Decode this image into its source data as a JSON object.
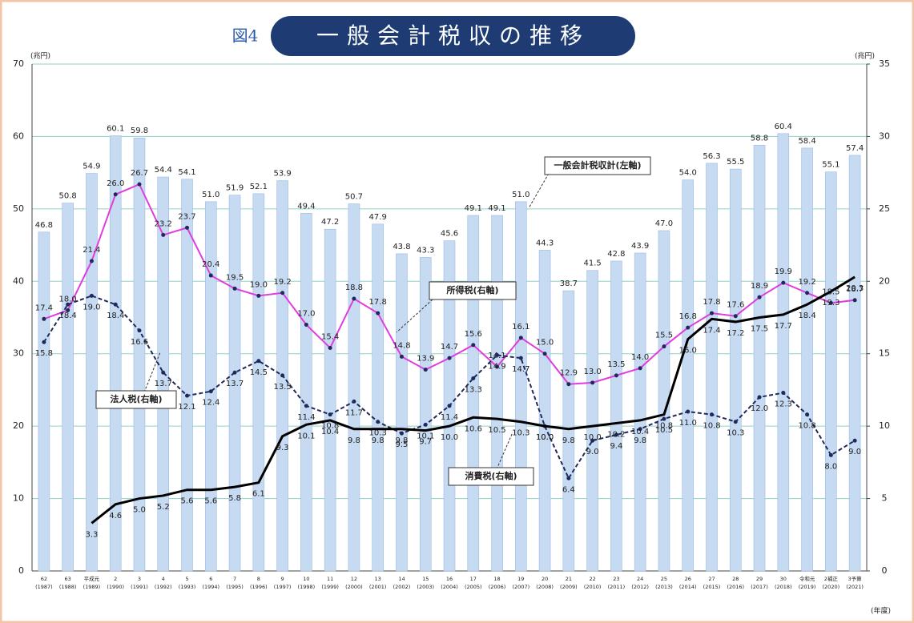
{
  "chart_data": {
    "type": "bar",
    "figure_label": "図4",
    "title": "一般会計税収の推移",
    "y_unit": "(兆円)",
    "y2_unit": "(兆円)",
    "x_unit": "(年度)",
    "categories": [
      "62",
      "63",
      "平成元",
      "2",
      "3",
      "4",
      "5",
      "6",
      "7",
      "8",
      "9",
      "10",
      "11",
      "12",
      "13",
      "14",
      "15",
      "16",
      "17",
      "18",
      "19",
      "20",
      "21",
      "22",
      "23",
      "24",
      "25",
      "26",
      "27",
      "28",
      "29",
      "30",
      "令和元",
      "2補正",
      "3予算"
    ],
    "category_years": [
      "(1987)",
      "(1988)",
      "(1989)",
      "(1990)",
      "(1991)",
      "(1992)",
      "(1993)",
      "(1994)",
      "(1995)",
      "(1996)",
      "(1997)",
      "(1998)",
      "(1999)",
      "(2000)",
      "(2001)",
      "(2002)",
      "(2003)",
      "(2004)",
      "(2005)",
      "(2006)",
      "(2007)",
      "(2008)",
      "(2009)",
      "(2010)",
      "(2011)",
      "(2012)",
      "(2013)",
      "(2014)",
      "(2015)",
      "(2016)",
      "(2017)",
      "(2018)",
      "(2019)",
      "(2020)",
      "(2021)"
    ],
    "ylim": [
      0,
      70
    ],
    "yticks": [
      0,
      10,
      20,
      30,
      40,
      50,
      60,
      70
    ],
    "y2lim": [
      0,
      35
    ],
    "y2ticks": [
      0,
      5,
      10,
      15,
      20,
      25,
      30,
      35
    ],
    "series": [
      {
        "name": "一般会計税収計(左軸)",
        "type": "bar",
        "color": "#c6daf2",
        "values": [
          46.8,
          50.8,
          54.9,
          60.1,
          59.8,
          54.4,
          54.1,
          51.0,
          51.9,
          52.1,
          53.9,
          49.4,
          47.2,
          50.7,
          47.9,
          43.8,
          43.3,
          45.6,
          49.1,
          49.1,
          51.0,
          44.3,
          38.7,
          41.5,
          42.8,
          43.9,
          47.0,
          54.0,
          56.3,
          55.5,
          58.8,
          60.4,
          58.4,
          55.1,
          57.4
        ],
        "value_labels": [
          "46.8",
          "50.8",
          "54.9",
          "60.1",
          "59.8",
          "54.4",
          "54.1",
          "51.0",
          "51.9",
          "52.1",
          "53.9",
          "49.4",
          "47.2",
          "50.7",
          "47.9",
          "43.8",
          "43.3",
          "45.6",
          "49.1",
          "49.1",
          "51.0",
          "44.3",
          "38.7",
          "41.5",
          "42.8",
          "43.9",
          "47.0",
          "54.0",
          "56.3",
          "55.5",
          "58.8",
          "60.4",
          "58.4",
          "55.1",
          "57.4"
        ]
      },
      {
        "name": "所得税(右軸)",
        "type": "line",
        "axis": "y2",
        "color": "#e03ce0",
        "values": [
          17.4,
          18.0,
          21.4,
          26.0,
          26.7,
          23.2,
          23.7,
          20.4,
          19.5,
          19.0,
          19.2,
          17.0,
          15.4,
          18.8,
          17.8,
          14.8,
          13.9,
          14.7,
          15.6,
          14.1,
          16.1,
          15.0,
          12.9,
          13.0,
          13.5,
          14.0,
          15.5,
          16.8,
          17.8,
          17.6,
          18.9,
          19.9,
          19.2,
          18.5,
          18.7
        ],
        "value_labels": [
          "17.4",
          "18.0",
          "21.4",
          "26.0",
          "26.7",
          "23.2",
          "23.7",
          "20.4",
          "19.5",
          "19.0",
          "19.2",
          "17.0",
          "15.4",
          "18.8",
          "17.8",
          "14.8",
          "13.9",
          "14.7",
          "15.6",
          "14.1",
          "16.1",
          "15.0",
          "12.9",
          "13.0",
          "13.5",
          "14.0",
          "15.5",
          "16.8",
          "17.8",
          "17.6",
          "18.9",
          "19.9",
          "19.2",
          "18.5",
          "18.7"
        ]
      },
      {
        "name": "法人税(右軸)",
        "type": "line",
        "axis": "y2",
        "color": "#1e2a5c",
        "dashed": true,
        "values": [
          15.8,
          18.4,
          19.0,
          18.4,
          16.6,
          13.7,
          12.1,
          12.4,
          13.7,
          14.5,
          13.5,
          11.4,
          10.8,
          11.7,
          10.3,
          9.5,
          10.1,
          11.4,
          13.3,
          14.9,
          14.7,
          10.0,
          6.4,
          9.0,
          9.4,
          9.8,
          10.5,
          11.0,
          10.8,
          10.3,
          12.0,
          12.3,
          10.8,
          8.0,
          9.0
        ],
        "value_labels": [
          "15.8",
          "18.4",
          "19.0",
          "18.4",
          "16.6",
          "13.7",
          "12.1",
          "12.4",
          "13.7",
          "14.5",
          "13.5",
          "11.4",
          "10.8",
          "11.7",
          "10.3",
          "9.5",
          "10.1",
          "11.4",
          "13.3",
          "14.9",
          "14.7",
          "10.0",
          "6.4",
          "9.0",
          "9.4",
          "9.8",
          "10.5",
          "11.0",
          "10.8",
          "10.3",
          "12.0",
          "12.3",
          "10.8",
          "8.0",
          "9.0"
        ]
      },
      {
        "name": "消費税(右軸)",
        "type": "line",
        "axis": "y2",
        "color": "#000000",
        "thick": true,
        "values": [
          null,
          null,
          3.3,
          4.6,
          5.0,
          5.2,
          5.6,
          5.6,
          5.8,
          6.1,
          9.3,
          10.1,
          10.4,
          9.8,
          9.8,
          9.8,
          9.7,
          10.0,
          10.6,
          10.5,
          10.3,
          10.0,
          9.8,
          10.0,
          10.2,
          10.4,
          10.8,
          16.0,
          17.4,
          17.2,
          17.5,
          17.7,
          18.4,
          19.3,
          20.3
        ],
        "value_labels": [
          null,
          null,
          "3.3",
          "4.6",
          "5.0",
          "5.2",
          "5.6",
          "5.6",
          "5.8",
          "6.1",
          "9.3",
          "10.1",
          "10.4",
          "9.8",
          "9.8",
          "9.8",
          "9.7",
          "10.0",
          "10.6",
          "10.5",
          "10.3",
          "10.0",
          "9.8",
          "10.0",
          "10.2",
          "10.4",
          "10.8",
          "16.0",
          "17.4",
          "17.2",
          "17.5",
          "17.7",
          "18.4",
          "19.3",
          "20.3"
        ]
      }
    ]
  }
}
